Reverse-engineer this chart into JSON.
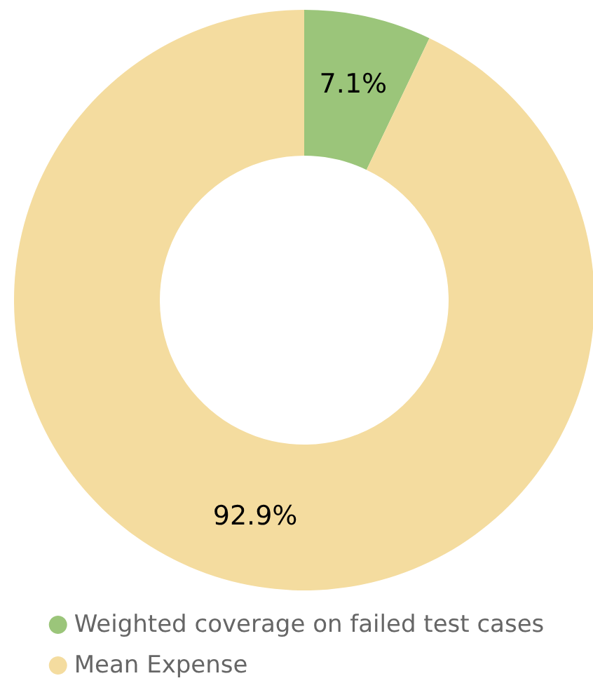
{
  "chart_data": {
    "type": "donut",
    "categories": [
      "Weighted coverage on failed test cases",
      "Mean Expense"
    ],
    "values": [
      7.1,
      92.9
    ],
    "colors": [
      "#9bc57a",
      "#f4dc9f"
    ],
    "value_labels": [
      "7.1%",
      "92.9%"
    ],
    "legend": "bottom"
  }
}
